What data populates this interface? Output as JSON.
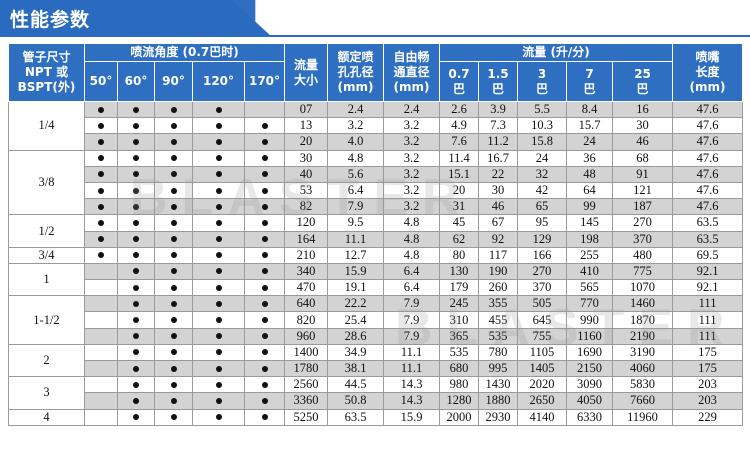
{
  "title": "性能参数",
  "watermark": "BLASTER",
  "colors": {
    "header_bg": "#2f6fc2",
    "row_shade": "#d3d3d3"
  },
  "headers": {
    "pipe_size": "管子尺寸NPT或BSPT(外)",
    "pipe_size_l1": "管子尺寸",
    "pipe_size_l2": "NPT 或",
    "pipe_size_l3": "BSPT(外)",
    "spray_angle": "喷流角度 (0.7巴时)",
    "angles": [
      "50°",
      "60°",
      "90°",
      "120°",
      "170°"
    ],
    "flow_code_l1": "流量",
    "flow_code_l2": "大小",
    "orifice_l1": "额定喷",
    "orifice_l2": "孔孔径",
    "orifice_l3": "(mm)",
    "free_l1": "自由畅",
    "free_l2": "通直径",
    "free_l3": "(mm)",
    "flow_rate": "流量 (升/分)",
    "pressures": [
      {
        "v": "0.7",
        "u": "巴"
      },
      {
        "v": "1.5",
        "u": "巴"
      },
      {
        "v": "3",
        "u": "巴"
      },
      {
        "v": "7",
        "u": "巴"
      },
      {
        "v": "25",
        "u": "巴"
      }
    ],
    "length_l1": "喷嘴",
    "length_l2": "长度",
    "length_l3": "(mm)"
  },
  "groups": [
    {
      "size": "1/4",
      "rows": [
        {
          "a": [
            1,
            1,
            1,
            1,
            0
          ],
          "code": "07",
          "orifice": "2.4",
          "free": "2.4",
          "flow": [
            "2.6",
            "3.9",
            "5.5",
            "8.4",
            "16"
          ],
          "len": "47.6"
        },
        {
          "a": [
            1,
            1,
            1,
            1,
            1
          ],
          "code": "13",
          "orifice": "3.2",
          "free": "3.2",
          "flow": [
            "4.9",
            "7.3",
            "10.3",
            "15.7",
            "30"
          ],
          "len": "47.6"
        },
        {
          "a": [
            1,
            1,
            1,
            1,
            1
          ],
          "code": "20",
          "orifice": "4.0",
          "free": "3.2",
          "flow": [
            "7.6",
            "11.2",
            "15.8",
            "24",
            "46"
          ],
          "len": "47.6"
        }
      ]
    },
    {
      "size": "3/8",
      "rows": [
        {
          "a": [
            1,
            1,
            1,
            1,
            1
          ],
          "code": "30",
          "orifice": "4.8",
          "free": "3.2",
          "flow": [
            "11.4",
            "16.7",
            "24",
            "36",
            "68"
          ],
          "len": "47.6"
        },
        {
          "a": [
            1,
            1,
            1,
            1,
            1
          ],
          "code": "40",
          "orifice": "5.6",
          "free": "3.2",
          "flow": [
            "15.1",
            "22",
            "32",
            "48",
            "91"
          ],
          "len": "47.6"
        },
        {
          "a": [
            1,
            1,
            1,
            1,
            1
          ],
          "code": "53",
          "orifice": "6.4",
          "free": "3.2",
          "flow": [
            "20",
            "30",
            "42",
            "64",
            "121"
          ],
          "len": "47.6"
        },
        {
          "a": [
            1,
            1,
            1,
            1,
            1
          ],
          "code": "82",
          "orifice": "7.9",
          "free": "3.2",
          "flow": [
            "31",
            "46",
            "65",
            "99",
            "187"
          ],
          "len": "47.6"
        }
      ]
    },
    {
      "size": "1/2",
      "rows": [
        {
          "a": [
            1,
            1,
            1,
            1,
            1
          ],
          "code": "120",
          "orifice": "9.5",
          "free": "4.8",
          "flow": [
            "45",
            "67",
            "95",
            "145",
            "270"
          ],
          "len": "63.5"
        },
        {
          "a": [
            1,
            1,
            1,
            1,
            1
          ],
          "code": "164",
          "orifice": "11.1",
          "free": "4.8",
          "flow": [
            "62",
            "92",
            "129",
            "198",
            "370"
          ],
          "len": "63.5"
        }
      ]
    },
    {
      "size": "3/4",
      "rows": [
        {
          "a": [
            1,
            1,
            1,
            1,
            1
          ],
          "code": "210",
          "orifice": "12.7",
          "free": "4.8",
          "flow": [
            "80",
            "117",
            "166",
            "255",
            "480"
          ],
          "len": "69.5"
        }
      ]
    },
    {
      "size": "1",
      "rows": [
        {
          "a": [
            0,
            1,
            1,
            1,
            1
          ],
          "code": "340",
          "orifice": "15.9",
          "free": "6.4",
          "flow": [
            "130",
            "190",
            "270",
            "410",
            "775"
          ],
          "len": "92.1"
        },
        {
          "a": [
            0,
            1,
            1,
            1,
            1
          ],
          "code": "470",
          "orifice": "19.1",
          "free": "6.4",
          "flow": [
            "179",
            "260",
            "370",
            "565",
            "1070"
          ],
          "len": "92.1"
        }
      ]
    },
    {
      "size": "1-1/2",
      "rows": [
        {
          "a": [
            0,
            1,
            1,
            1,
            1
          ],
          "code": "640",
          "orifice": "22.2",
          "free": "7.9",
          "flow": [
            "245",
            "355",
            "505",
            "770",
            "1460"
          ],
          "len": "111"
        },
        {
          "a": [
            0,
            1,
            1,
            1,
            1
          ],
          "code": "820",
          "orifice": "25.4",
          "free": "7.9",
          "flow": [
            "310",
            "455",
            "645",
            "990",
            "1870"
          ],
          "len": "111"
        },
        {
          "a": [
            0,
            1,
            1,
            1,
            1
          ],
          "code": "960",
          "orifice": "28.6",
          "free": "7.9",
          "flow": [
            "365",
            "535",
            "755",
            "1160",
            "2190"
          ],
          "len": "111"
        }
      ]
    },
    {
      "size": "2",
      "rows": [
        {
          "a": [
            0,
            1,
            1,
            1,
            1
          ],
          "code": "1400",
          "orifice": "34.9",
          "free": "11.1",
          "flow": [
            "535",
            "780",
            "1105",
            "1690",
            "3190"
          ],
          "len": "175"
        },
        {
          "a": [
            0,
            1,
            1,
            1,
            1
          ],
          "code": "1780",
          "orifice": "38.1",
          "free": "11.1",
          "flow": [
            "680",
            "995",
            "1405",
            "2150",
            "4060"
          ],
          "len": "175"
        }
      ]
    },
    {
      "size": "3",
      "rows": [
        {
          "a": [
            0,
            1,
            1,
            1,
            1
          ],
          "code": "2560",
          "orifice": "44.5",
          "free": "14.3",
          "flow": [
            "980",
            "1430",
            "2020",
            "3090",
            "5830"
          ],
          "len": "203"
        },
        {
          "a": [
            0,
            1,
            1,
            1,
            1
          ],
          "code": "3360",
          "orifice": "50.8",
          "free": "14.3",
          "flow": [
            "1280",
            "1880",
            "2650",
            "4050",
            "7660"
          ],
          "len": "203"
        }
      ]
    },
    {
      "size": "4",
      "rows": [
        {
          "a": [
            0,
            1,
            1,
            1,
            1
          ],
          "code": "5250",
          "orifice": "63.5",
          "free": "15.9",
          "flow": [
            "2000",
            "2930",
            "4140",
            "6330",
            "11960"
          ],
          "len": "229"
        }
      ]
    }
  ]
}
